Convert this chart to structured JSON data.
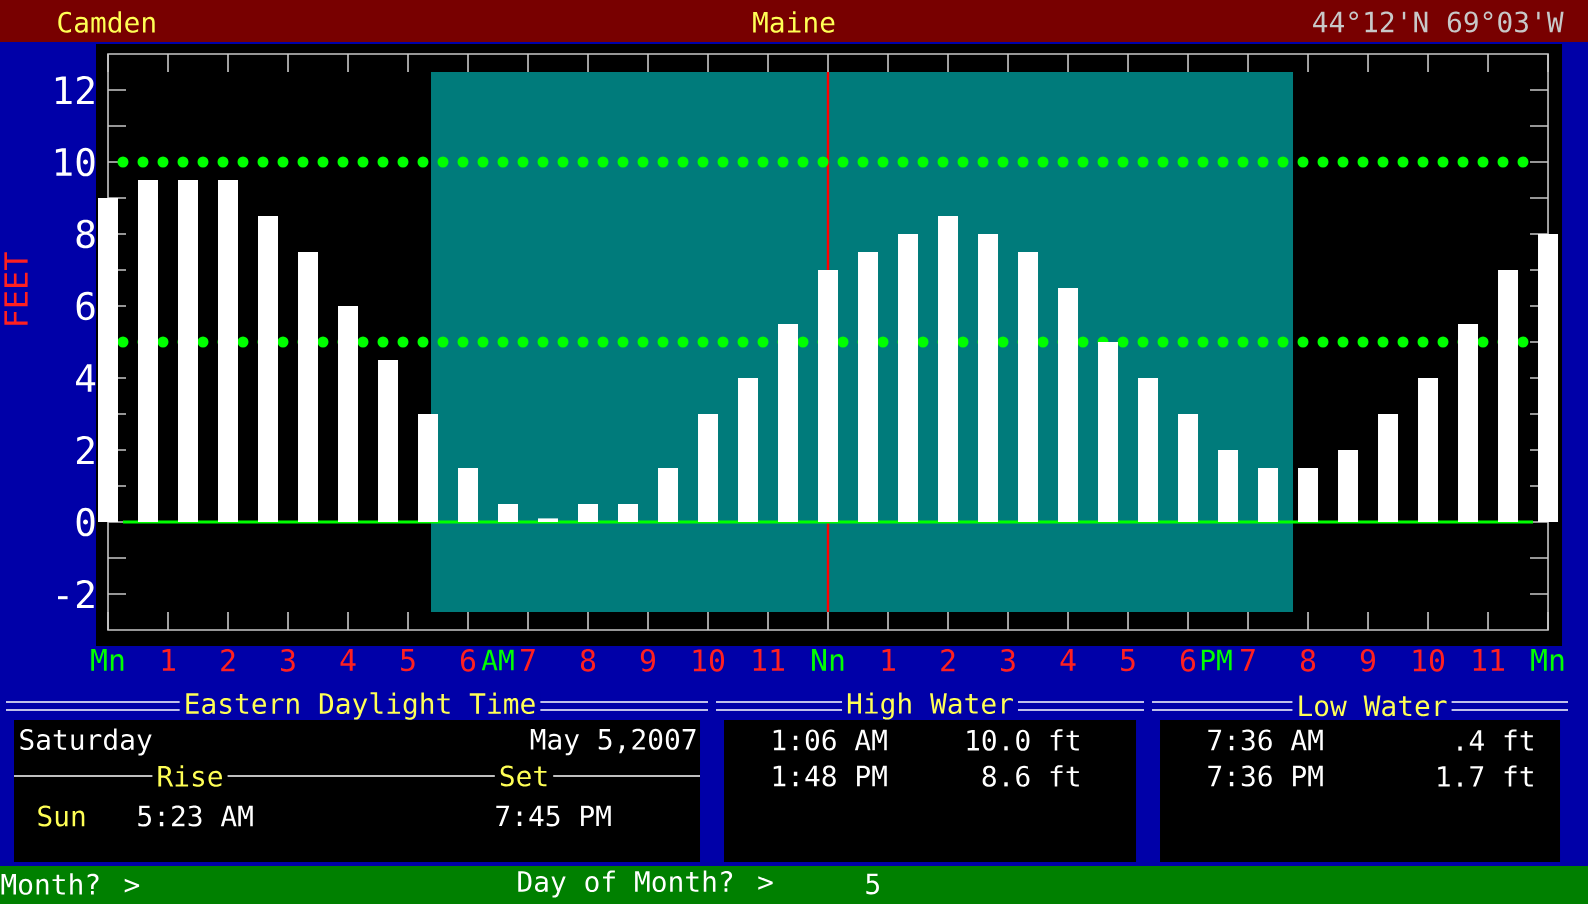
{
  "chart_data": {
    "type": "bar",
    "title": "Camden",
    "subtitle": "Maine",
    "ylabel": "FEET",
    "x": [
      "2007-05-05T00:00",
      "2007-05-05T00:40",
      "2007-05-05T01:20",
      "2007-05-05T02:00",
      "2007-05-05T02:40",
      "2007-05-05T03:20",
      "2007-05-05T04:00",
      "2007-05-05T04:40",
      "2007-05-05T05:20",
      "2007-05-05T06:00",
      "2007-05-05T06:40",
      "2007-05-05T07:20",
      "2007-05-05T08:00",
      "2007-05-05T08:40",
      "2007-05-05T09:20",
      "2007-05-05T10:00",
      "2007-05-05T10:40",
      "2007-05-05T11:20",
      "2007-05-05T12:00",
      "2007-05-05T12:40",
      "2007-05-05T13:20",
      "2007-05-05T14:00",
      "2007-05-05T14:40",
      "2007-05-05T15:20",
      "2007-05-05T16:00",
      "2007-05-05T16:40",
      "2007-05-05T17:20",
      "2007-05-05T18:00",
      "2007-05-05T18:40",
      "2007-05-05T19:20",
      "2007-05-05T20:00",
      "2007-05-05T20:40",
      "2007-05-05T21:20",
      "2007-05-05T22:00",
      "2007-05-05T22:40",
      "2007-05-05T23:20",
      "2007-05-06T00:00"
    ],
    "values": [
      9,
      9.5,
      9.5,
      9.5,
      8.5,
      7.5,
      6,
      4.5,
      3,
      1.5,
      0.5,
      0.1,
      0.5,
      0.5,
      1.5,
      3,
      4,
      5.5,
      7,
      7.5,
      8,
      8.5,
      8,
      7.5,
      6.5,
      5,
      4,
      3,
      2,
      1.5,
      1.5,
      2,
      3,
      4,
      5.5,
      7,
      8
    ],
    "color": "#ffffff",
    "xlim": [
      "2007-05-05T00:00",
      "2007-05-06T00:00"
    ],
    "xticks": [
      {
        "value": "2007-05-05T00:00",
        "label": "Mn"
      },
      {
        "value": "2007-05-05T01:00",
        "label": "1"
      },
      {
        "value": "2007-05-05T02:00",
        "label": "2"
      },
      {
        "value": "2007-05-05T03:00",
        "label": "3"
      },
      {
        "value": "2007-05-05T04:00",
        "label": "4"
      },
      {
        "value": "2007-05-05T05:00",
        "label": "5"
      },
      {
        "value": "2007-05-05T06:00",
        "label": "6"
      },
      {
        "value": "2007-05-05T07:00",
        "label": "7"
      },
      {
        "value": "2007-05-05T08:00",
        "label": "8"
      },
      {
        "value": "2007-05-05T09:00",
        "label": "9"
      },
      {
        "value": "2007-05-05T10:00",
        "label": "10"
      },
      {
        "value": "2007-05-05T11:00",
        "label": "11"
      },
      {
        "value": "2007-05-05T12:00",
        "label": "Nn"
      },
      {
        "value": "2007-05-05T13:00",
        "label": "1"
      },
      {
        "value": "2007-05-05T14:00",
        "label": "2"
      },
      {
        "value": "2007-05-05T15:00",
        "label": "3"
      },
      {
        "value": "2007-05-05T16:00",
        "label": "4"
      },
      {
        "value": "2007-05-05T17:00",
        "label": "5"
      },
      {
        "value": "2007-05-05T18:00",
        "label": "6"
      },
      {
        "value": "2007-05-05T19:00",
        "label": "7"
      },
      {
        "value": "2007-05-05T20:00",
        "label": "8"
      },
      {
        "value": "2007-05-05T21:00",
        "label": "9"
      },
      {
        "value": "2007-05-05T22:00",
        "label": "10"
      },
      {
        "value": "2007-05-05T23:00",
        "label": "11"
      },
      {
        "value": "2007-05-06T00:00",
        "label": "Mn"
      }
    ],
    "ylim": [
      -3,
      13
    ],
    "yticks": [
      -2,
      {
        "value": -1,
        "label": null
      },
      0,
      {
        "value": 1,
        "label": null
      },
      2,
      {
        "value": 3,
        "label": null
      },
      4,
      {
        "value": 5,
        "label": null
      },
      6,
      {
        "value": 7,
        "label": null
      },
      8,
      {
        "value": 9,
        "label": null
      },
      10,
      {
        "value": 11,
        "label": null
      },
      12
    ],
    "grid": false,
    "bands": [
      {
        "axis": "x",
        "from": "2007-05-05T05:23",
        "to": "2007-05-05T19:45",
        "color": "#007b7b"
      }
    ],
    "ref_lines": [
      {
        "axis": "x",
        "value": "2007-05-05T12:00",
        "color": "#ff0000",
        "line_style": "solid"
      },
      {
        "axis": "y",
        "value": 10,
        "color": "#00ff00",
        "line_style": "dotted"
      },
      {
        "axis": "y",
        "value": 5,
        "color": "#00ff00",
        "line_style": "dotted"
      },
      {
        "axis": "y",
        "value": 0,
        "color": "#00ff00",
        "line_style": "solid"
      }
    ],
    "annotations": [
      "44°12'N  69°03'W",
      "Eastern Daylight Time",
      "Saturday",
      "May  5,2007",
      "Rise",
      "Set",
      "Sun",
      "5:23 AM",
      "7:45 PM",
      "High Water",
      "1:06 AM",
      "10.0 ft",
      "1:48 PM",
      "8.6 ft",
      "Low Water",
      "7:36 AM",
      ".4 ft",
      "7:36 PM",
      "1.7 ft",
      "Month? >",
      "Day of Month? >",
      "5",
      "AM",
      "PM"
    ]
  }
}
